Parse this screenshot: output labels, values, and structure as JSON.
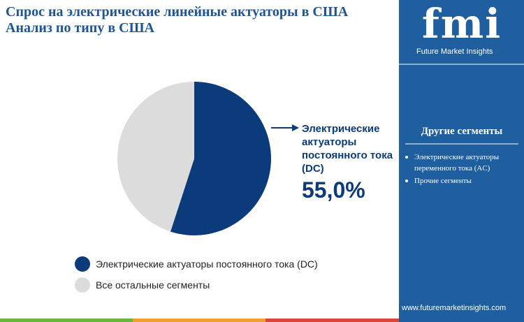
{
  "header": {
    "title": [
      "Спрос на электрические линейные актуаторы в США",
      "Анализ по типу в США"
    ]
  },
  "brand": {
    "logo": "fmi",
    "name": "Future Market Insights",
    "url": "www.futuremarketinsights.com"
  },
  "sidebar": {
    "heading": "Другие сегменты",
    "items": [
      "Электрические актуаторы переменного тока (AC)",
      "Прочие сегменты"
    ]
  },
  "chart_data": {
    "type": "pie",
    "categories": [
      "Электрические актуаторы постоянного тока (DC)",
      "Все остальные сегменты"
    ],
    "values": [
      55,
      45
    ],
    "value_labels": [
      "55,0%",
      null
    ],
    "colors": [
      "#0b3b7a",
      "#dcdcdc"
    ]
  }
}
